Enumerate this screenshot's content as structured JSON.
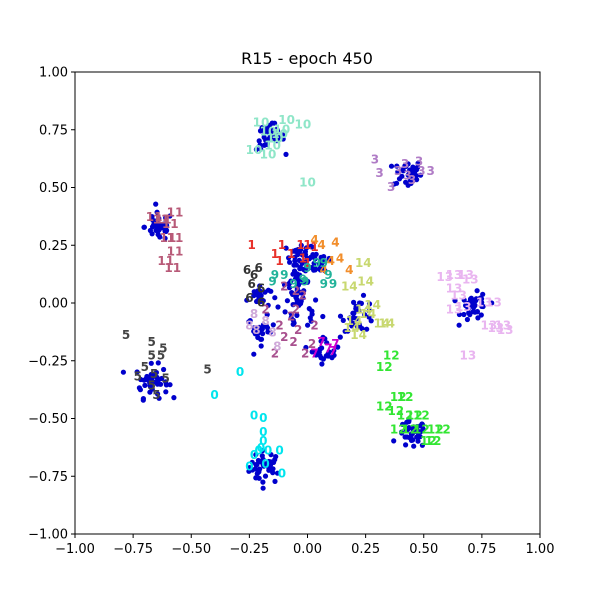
{
  "chart_data": {
    "type": "scatter",
    "title": "R15 - epoch 450",
    "xlabel": "",
    "ylabel": "",
    "xlim": [
      -1.0,
      1.0
    ],
    "ylim": [
      -1.0,
      1.0
    ],
    "x_ticks": [
      "−1.00",
      "−0.75",
      "−0.50",
      "−0.25",
      "0.00",
      "0.25",
      "0.50",
      "0.75",
      "1.00"
    ],
    "y_ticks": [
      "1.00",
      "0.75",
      "0.50",
      "0.25",
      "0.00",
      "−0.25",
      "−0.50",
      "−0.75",
      "−1.00"
    ],
    "grid": false,
    "point_color": "#0000cc",
    "clusters": [
      {
        "label": "0",
        "color": "#00e5ee",
        "center": [
          -0.18,
          -0.71
        ],
        "spread": 0.035,
        "count": 40,
        "labels": [
          [
            -0.29,
            -0.3
          ],
          [
            -0.4,
            -0.4
          ],
          [
            -0.23,
            -0.49
          ],
          [
            -0.19,
            -0.5
          ],
          [
            -0.19,
            -0.56
          ],
          [
            -0.19,
            -0.6
          ],
          [
            -0.2,
            -0.63
          ],
          [
            -0.21,
            -0.64
          ],
          [
            -0.17,
            -0.64
          ],
          [
            -0.23,
            -0.66
          ],
          [
            -0.12,
            -0.64
          ],
          [
            -0.25,
            -0.71
          ],
          [
            -0.18,
            -0.7
          ],
          [
            -0.11,
            -0.74
          ]
        ]
      },
      {
        "label": "1",
        "color": "#e8312a",
        "center": [
          -0.03,
          0.2
        ],
        "spread": 0.03,
        "count": 30,
        "labels": [
          [
            -0.24,
            0.25
          ],
          [
            -0.11,
            0.25
          ],
          [
            -0.07,
            0.21
          ],
          [
            -0.03,
            0.25
          ],
          [
            0.0,
            0.25
          ],
          [
            0.03,
            0.24
          ],
          [
            -0.12,
            0.18
          ],
          [
            -0.14,
            0.21
          ],
          [
            0.0,
            0.17
          ],
          [
            -0.02,
            0.19
          ]
        ]
      },
      {
        "label": "2",
        "color": "#a8508e",
        "center": [
          -0.04,
          -0.03
        ],
        "spread": 0.05,
        "count": 30,
        "labels": [
          [
            -0.1,
            0.07
          ],
          [
            -0.05,
            0.05
          ],
          [
            -0.02,
            0.03
          ],
          [
            -0.05,
            -0.03
          ],
          [
            -0.18,
            -0.03
          ],
          [
            -0.07,
            -0.06
          ],
          [
            -0.04,
            -0.12
          ],
          [
            -0.12,
            -0.1
          ],
          [
            0.03,
            -0.1
          ],
          [
            -0.06,
            -0.17
          ],
          [
            -0.1,
            -0.15
          ],
          [
            -0.01,
            -0.22
          ],
          [
            0.02,
            -0.18
          ],
          [
            -0.14,
            -0.22
          ]
        ]
      },
      {
        "label": "3",
        "color": "#b07cc6",
        "center": [
          0.43,
          0.56
        ],
        "spread": 0.03,
        "count": 40,
        "labels": [
          [
            0.29,
            0.62
          ],
          [
            0.31,
            0.56
          ],
          [
            0.36,
            0.5
          ],
          [
            0.42,
            0.6
          ],
          [
            0.48,
            0.61
          ],
          [
            0.49,
            0.57
          ],
          [
            0.53,
            0.57
          ],
          [
            0.39,
            0.57
          ],
          [
            0.43,
            0.55
          ],
          [
            0.45,
            0.53
          ]
        ]
      },
      {
        "label": "4",
        "color": "#f28e2b",
        "center": [
          0.06,
          0.18
        ],
        "spread": 0.03,
        "count": 25,
        "labels": [
          [
            0.03,
            0.27
          ],
          [
            0.06,
            0.25
          ],
          [
            0.12,
            0.26
          ],
          [
            0.18,
            0.14
          ],
          [
            0.1,
            0.18
          ],
          [
            0.14,
            0.19
          ],
          [
            0.07,
            0.14
          ]
        ]
      },
      {
        "label": "5",
        "color": "#444444",
        "center": [
          -0.67,
          -0.34
        ],
        "spread": 0.035,
        "count": 45,
        "labels": [
          [
            -0.78,
            -0.14
          ],
          [
            -0.67,
            -0.17
          ],
          [
            -0.62,
            -0.2
          ],
          [
            -0.67,
            -0.23
          ],
          [
            -0.63,
            -0.23
          ],
          [
            -0.7,
            -0.28
          ],
          [
            -0.66,
            -0.31
          ],
          [
            -0.61,
            -0.33
          ],
          [
            -0.43,
            -0.29
          ],
          [
            -0.67,
            -0.36
          ],
          [
            -0.73,
            -0.32
          ],
          [
            -0.65,
            -0.4
          ]
        ]
      },
      {
        "label": "6",
        "color": "#333333",
        "center": [
          -0.21,
          0.03
        ],
        "spread": 0.025,
        "count": 25,
        "labels": [
          [
            -0.26,
            0.14
          ],
          [
            -0.21,
            0.15
          ],
          [
            -0.24,
            0.08
          ],
          [
            -0.2,
            0.06
          ],
          [
            -0.25,
            0.02
          ],
          [
            -0.2,
            0.0
          ],
          [
            -0.23,
            0.12
          ]
        ]
      },
      {
        "label": "7",
        "color": "#cc00cc",
        "center": [
          0.08,
          -0.2
        ],
        "spread": 0.03,
        "count": 25,
        "labels": [
          [
            0.06,
            -0.17
          ],
          [
            0.09,
            -0.2
          ],
          [
            0.11,
            -0.21
          ],
          [
            0.03,
            -0.22
          ],
          [
            0.12,
            -0.18
          ]
        ]
      },
      {
        "label": "8",
        "color": "#cfa9d9",
        "center": [
          -0.2,
          -0.12
        ],
        "spread": 0.03,
        "count": 25,
        "labels": [
          [
            -0.23,
            -0.05
          ],
          [
            -0.18,
            -0.08
          ],
          [
            -0.22,
            -0.12
          ],
          [
            -0.15,
            -0.13
          ],
          [
            -0.25,
            -0.1
          ],
          [
            -0.13,
            -0.19
          ]
        ]
      },
      {
        "label": "9",
        "color": "#22b39a",
        "center": [
          -0.04,
          0.09
        ],
        "spread": 0.025,
        "count": 25,
        "labels": [
          [
            -0.14,
            0.12
          ],
          [
            -0.15,
            0.09
          ],
          [
            -0.1,
            0.12
          ],
          [
            -0.06,
            0.08
          ],
          [
            -0.02,
            0.1
          ],
          [
            0.0,
            0.15
          ],
          [
            0.09,
            0.12
          ],
          [
            0.04,
            0.17
          ],
          [
            0.07,
            0.17
          ],
          [
            -0.01,
            0.09
          ],
          [
            0.07,
            0.08
          ],
          [
            0.11,
            0.08
          ]
        ]
      },
      {
        "label": "10",
        "color": "#8fe6c8",
        "center": [
          -0.16,
          0.72
        ],
        "spread": 0.03,
        "count": 40,
        "labels": [
          [
            -0.2,
            0.78
          ],
          [
            -0.09,
            0.79
          ],
          [
            -0.11,
            0.75
          ],
          [
            -0.02,
            0.77
          ],
          [
            -0.17,
            0.74
          ],
          [
            -0.14,
            0.71
          ],
          [
            -0.12,
            0.73
          ],
          [
            -0.23,
            0.66
          ],
          [
            -0.17,
            0.64
          ],
          [
            -0.15,
            0.68
          ],
          [
            0.0,
            0.52
          ]
        ]
      },
      {
        "label": "11",
        "color": "#b85a78",
        "center": [
          -0.64,
          0.33
        ],
        "spread": 0.03,
        "count": 40,
        "labels": [
          [
            -0.57,
            0.39
          ],
          [
            -0.62,
            0.36
          ],
          [
            -0.66,
            0.37
          ],
          [
            -0.63,
            0.36
          ],
          [
            -0.59,
            0.34
          ],
          [
            -0.6,
            0.28
          ],
          [
            -0.57,
            0.28
          ],
          [
            -0.57,
            0.22
          ],
          [
            -0.61,
            0.18
          ],
          [
            -0.58,
            0.15
          ]
        ]
      },
      {
        "label": "12",
        "color": "#33e633",
        "center": [
          0.45,
          -0.57
        ],
        "spread": 0.03,
        "count": 40,
        "labels": [
          [
            0.36,
            -0.23
          ],
          [
            0.33,
            -0.28
          ],
          [
            0.39,
            -0.41
          ],
          [
            0.42,
            -0.41
          ],
          [
            0.33,
            -0.45
          ],
          [
            0.38,
            -0.47
          ],
          [
            0.42,
            -0.49
          ],
          [
            0.46,
            -0.49
          ],
          [
            0.49,
            -0.49
          ],
          [
            0.44,
            -0.55
          ],
          [
            0.39,
            -0.55
          ],
          [
            0.49,
            -0.55
          ],
          [
            0.55,
            -0.55
          ],
          [
            0.58,
            -0.55
          ],
          [
            0.52,
            -0.6
          ],
          [
            0.54,
            -0.6
          ]
        ]
      },
      {
        "label": "13",
        "color": "#e9b5f0",
        "center": [
          0.72,
          -0.02
        ],
        "spread": 0.03,
        "count": 40,
        "labels": [
          [
            0.63,
            0.12
          ],
          [
            0.68,
            0.12
          ],
          [
            0.7,
            0.1
          ],
          [
            0.59,
            0.11
          ],
          [
            0.63,
            0.06
          ],
          [
            0.65,
            0.03
          ],
          [
            0.67,
            -0.02
          ],
          [
            0.63,
            -0.03
          ],
          [
            0.76,
            0.0
          ],
          [
            0.8,
            0.0
          ],
          [
            0.81,
            -0.11
          ],
          [
            0.84,
            -0.1
          ],
          [
            0.78,
            -0.1
          ],
          [
            0.69,
            -0.23
          ],
          [
            0.85,
            -0.12
          ]
        ]
      },
      {
        "label": "14",
        "color": "#c8d870",
        "center": [
          0.22,
          -0.05
        ],
        "spread": 0.035,
        "count": 35,
        "labels": [
          [
            0.24,
            0.17
          ],
          [
            0.18,
            0.07
          ],
          [
            0.25,
            0.09
          ],
          [
            0.26,
            -0.05
          ],
          [
            0.24,
            -0.03
          ],
          [
            0.28,
            -0.01
          ],
          [
            0.19,
            -0.11
          ],
          [
            0.22,
            -0.14
          ],
          [
            0.32,
            -0.09
          ],
          [
            0.34,
            -0.09
          ],
          [
            0.2,
            -0.08
          ]
        ]
      }
    ]
  }
}
